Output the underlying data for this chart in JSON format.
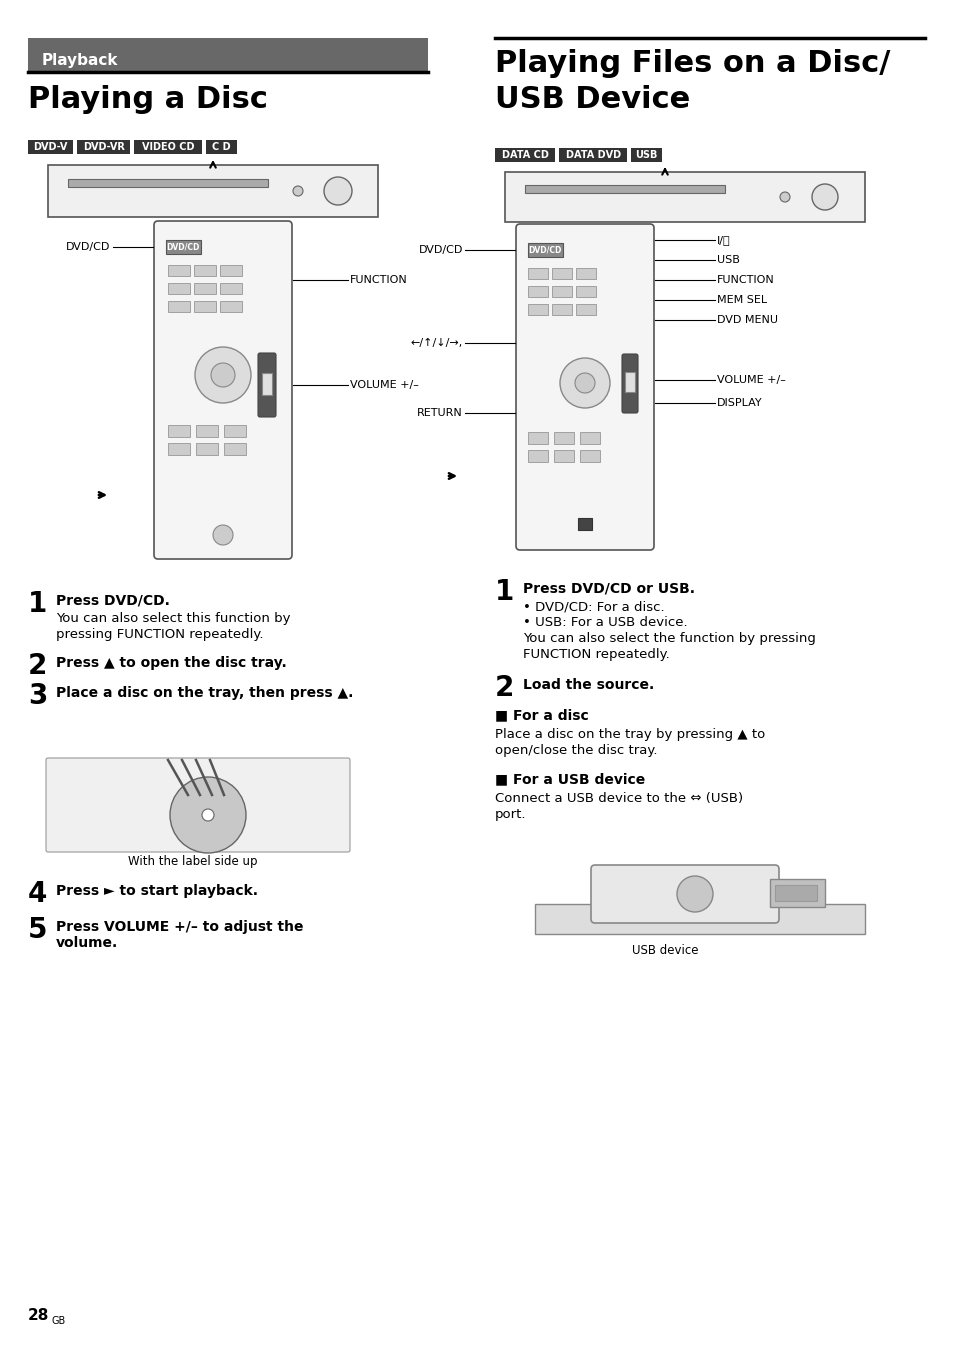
{
  "page_bg": "#ffffff",
  "playback_banner_color": "#686868",
  "playback_banner_text": "Playback",
  "playback_banner_text_color": "#ffffff",
  "left_title": "Playing a Disc",
  "right_title_line1": "Playing Files on a Disc/",
  "right_title_line2": "USB Device",
  "left_disc_badges": [
    "DVD-V",
    "DVD-VR",
    "VIDEO CD",
    "C D"
  ],
  "right_disc_badges": [
    "DATA CD",
    "DATA DVD",
    "USB"
  ],
  "left_steps": [
    {
      "num": "1",
      "bold": "Press DVD/CD.",
      "normal": "You can also select this function by\npressing FUNCTION repeatedly."
    },
    {
      "num": "2",
      "bold": "Press ▲ to open the disc tray.",
      "normal": ""
    },
    {
      "num": "3",
      "bold": "Place a disc on the tray, then press ▲.",
      "normal": ""
    },
    {
      "num": "4",
      "bold": "Press ► to start playback.",
      "normal": ""
    },
    {
      "num": "5",
      "bold": "Press VOLUME +/– to adjust the\nvolume.",
      "normal": ""
    }
  ],
  "right_steps": [
    {
      "num": "1",
      "bold": "Press DVD/CD or USB.",
      "normal": "• DVD/CD: For a disc.\n• USB: For a USB device.\nYou can also select the function by pressing\nFUNCTION repeatedly."
    },
    {
      "num": "2",
      "bold": "Load the source.",
      "normal": ""
    }
  ],
  "right_for_disc_header": "■ For a disc",
  "right_for_disc_text": "Place a disc on the tray by pressing ▲ to\nopen/close the disc tray.",
  "right_for_usb_header": "■ For a USB device",
  "right_for_usb_text": "Connect a USB device to the ⇔ (USB)\nport.",
  "caption_disc": "With the label side up",
  "caption_usb": "USB device",
  "page_number": "28",
  "page_suffix": "GB"
}
